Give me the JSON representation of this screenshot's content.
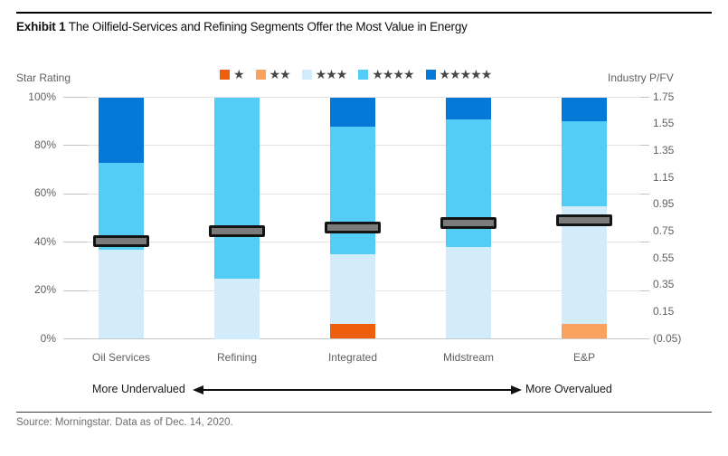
{
  "title": {
    "exhibit": "Exhibit 1",
    "text": "The Oilfield-Services and Refining Segments Offer the Most Value in Energy"
  },
  "legend": {
    "items": [
      {
        "stars": 1,
        "symbol": "★",
        "color": "#ee5f0d"
      },
      {
        "stars": 2,
        "symbol": "★★",
        "color": "#f9a15f"
      },
      {
        "stars": 3,
        "symbol": "★★★",
        "color": "#d2ecfb"
      },
      {
        "stars": 4,
        "symbol": "★★★★",
        "color": "#54cdf6"
      },
      {
        "stars": 5,
        "symbol": "★★★★★",
        "color": "#0678d8"
      }
    ]
  },
  "chart_data": {
    "type": "bar",
    "stacked": true,
    "title": "Exhibit 1 The Oilfield-Services and Refining Segments Offer the Most Value in Energy",
    "categories": [
      "Oil Services",
      "Refining",
      "Integrated",
      "Midstream",
      "E&P"
    ],
    "series": [
      {
        "name": "1 star",
        "stars": 1,
        "color": "#ee5f0d",
        "values": [
          0,
          0,
          6,
          0,
          0
        ]
      },
      {
        "name": "2 stars",
        "stars": 2,
        "color": "#f9a15f",
        "values": [
          0,
          0,
          0,
          0,
          6
        ]
      },
      {
        "name": "3 stars",
        "stars": 3,
        "color": "#d2ecfb",
        "values": [
          37,
          25,
          29,
          38,
          49
        ]
      },
      {
        "name": "4 stars",
        "stars": 4,
        "color": "#54cdf6",
        "values": [
          36,
          75,
          53,
          53,
          35
        ]
      },
      {
        "name": "5 stars",
        "stars": 5,
        "color": "#0678d8",
        "values": [
          27,
          0,
          12,
          9,
          10
        ]
      }
    ],
    "markers": {
      "name": "Industry P/FV",
      "color": "#7b7b7b",
      "values": [
        0.68,
        0.75,
        0.78,
        0.81,
        0.83
      ]
    },
    "left_axis": {
      "title": "Star Rating",
      "unit": "%",
      "range": [
        0,
        100
      ],
      "ticks": [
        {
          "label": "100%",
          "pct": 100
        },
        {
          "label": "80%",
          "pct": 80
        },
        {
          "label": "60%",
          "pct": 60
        },
        {
          "label": "40%",
          "pct": 40
        },
        {
          "label": "20%",
          "pct": 20
        },
        {
          "label": "0%",
          "pct": 0
        }
      ]
    },
    "right_axis": {
      "title": "Industry P/FV",
      "range": [
        -0.05,
        1.75
      ],
      "ticks": [
        {
          "label": "1.75",
          "value": 1.75
        },
        {
          "label": "1.55",
          "value": 1.55
        },
        {
          "label": "1.35",
          "value": 1.35
        },
        {
          "label": "1.15",
          "value": 1.15
        },
        {
          "label": "0.95",
          "value": 0.95
        },
        {
          "label": "0.75",
          "value": 0.75
        },
        {
          "label": "0.55",
          "value": 0.55
        },
        {
          "label": "0.35",
          "value": 0.35
        },
        {
          "label": "0.15",
          "value": 0.15
        },
        {
          "label": "(0.05)",
          "value": -0.05
        }
      ]
    },
    "grid": true,
    "legend_position": "top"
  },
  "footer": {
    "more_undervalued": "More Undervalued",
    "more_overvalued": "More Overvalued",
    "source": "Source: Morningstar. Data as of Dec. 14, 2020."
  }
}
